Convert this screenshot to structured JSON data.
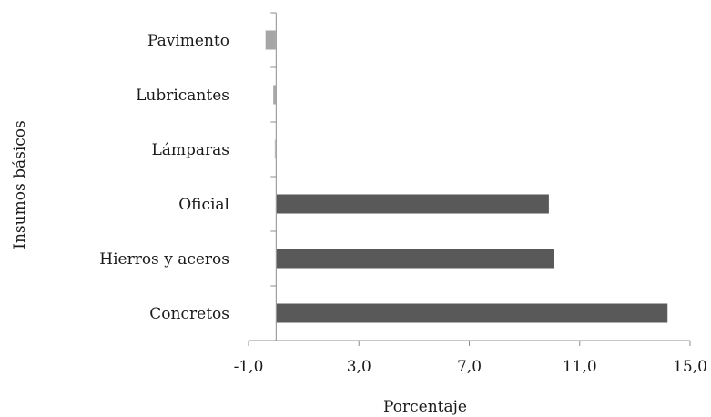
{
  "chart_data": {
    "type": "bar",
    "orientation": "horizontal",
    "title": "",
    "xlabel": "Porcentaje",
    "ylabel": "Insumos básicos",
    "xlim": [
      -1.0,
      15.0
    ],
    "x_ticks": [
      -1.0,
      3.0,
      7.0,
      11.0,
      15.0
    ],
    "x_tick_labels": [
      "-1,0",
      "3,0",
      "7,0",
      "11,0",
      "15,0"
    ],
    "categories": [
      "Concretos",
      "Hierros y aceros",
      "Oficial",
      "Lámparas",
      "Lubricantes",
      "Pavimento"
    ],
    "values": [
      14.2,
      10.1,
      9.9,
      -0.05,
      -0.12,
      -0.4
    ],
    "bar_colors": [
      "#595959",
      "#595959",
      "#595959",
      "#bfbfbf",
      "#a6a6a6",
      "#a6a6a6"
    ],
    "grid": false,
    "legend": "none"
  }
}
